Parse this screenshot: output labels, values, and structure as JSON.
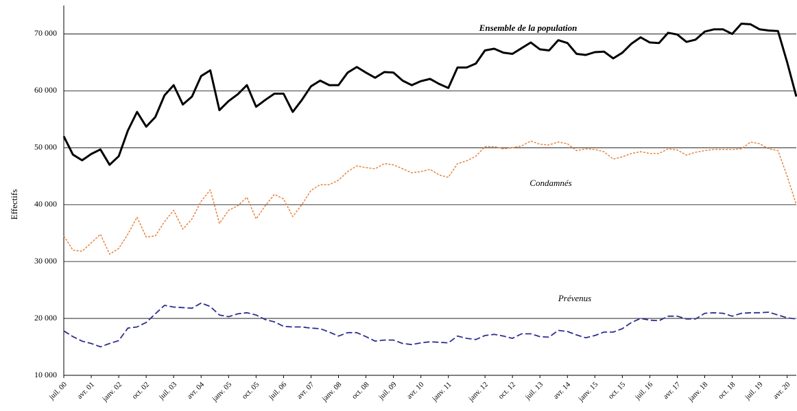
{
  "chart_data": {
    "type": "line",
    "ylabel": "Effectifs",
    "categories": [
      "juil. 00",
      null,
      null,
      "avr. 01",
      null,
      null,
      "janv. 02",
      null,
      null,
      "oct. 02",
      null,
      null,
      "juil. 03",
      null,
      null,
      "avr. 04",
      null,
      null,
      "janv. 05",
      null,
      null,
      "oct. 05",
      null,
      null,
      "juil. 06",
      null,
      null,
      "avr. 07",
      null,
      null,
      "janv. 08",
      null,
      null,
      "oct. 08",
      null,
      null,
      "juil. 09",
      null,
      null,
      "avr. 10",
      null,
      null,
      "janv. 11",
      null,
      null,
      null,
      "janv. 12",
      null,
      null,
      "oct. 12",
      null,
      null,
      "juil. 13",
      null,
      null,
      "avr. 14",
      null,
      null,
      "janv. 15",
      null,
      null,
      "oct. 15",
      null,
      null,
      "juil. 16",
      null,
      null,
      "avr. 17",
      null,
      null,
      "janv. 18",
      null,
      null,
      "oct. 18",
      null,
      null,
      "juil. 19",
      null,
      null,
      "avr. 20",
      null
    ],
    "series": [
      {
        "name": "Ensemble de la population",
        "color": "#000000",
        "dash": "solid",
        "values": [
          52000,
          48800,
          47800,
          48900,
          49700,
          47000,
          48500,
          53000,
          56300,
          53700,
          55400,
          59200,
          61000,
          57600,
          59000,
          62600,
          63600,
          56600,
          58200,
          59400,
          61000,
          57200,
          58400,
          59500,
          59500,
          56300,
          58400,
          60800,
          61800,
          61000,
          61000,
          63200,
          64200,
          63200,
          62300,
          63300,
          63200,
          61800,
          61000,
          61700,
          62100,
          61200,
          60500,
          64100,
          64100,
          64800,
          67100,
          67400,
          66700,
          66500,
          67500,
          68500,
          67300,
          67100,
          68900,
          68400,
          66500,
          66300,
          66800,
          66900,
          65700,
          66700,
          68300,
          69400,
          68500,
          68400,
          70200,
          69900,
          68600,
          69000,
          70400,
          70800,
          70800,
          70000,
          71800,
          71700,
          70800,
          70600,
          70500,
          65000,
          59000
        ]
      },
      {
        "name": "Condamnés",
        "color": "#e8823a",
        "dash": "dotted",
        "values": [
          34500,
          32000,
          31800,
          33300,
          34800,
          31300,
          32300,
          34800,
          37800,
          34300,
          34500,
          37000,
          39000,
          35700,
          37500,
          40600,
          42600,
          36700,
          39000,
          39800,
          41300,
          37500,
          39800,
          41800,
          41000,
          37900,
          40000,
          42500,
          43500,
          43500,
          44300,
          45800,
          46800,
          46500,
          46300,
          47200,
          47000,
          46300,
          45600,
          45800,
          46200,
          45200,
          44800,
          47200,
          47700,
          48500,
          50200,
          50200,
          49800,
          50000,
          50300,
          51200,
          50600,
          50500,
          51000,
          50700,
          49500,
          49800,
          49700,
          49300,
          48000,
          48400,
          49000,
          49300,
          49000,
          49000,
          49800,
          49600,
          48700,
          49200,
          49500,
          49700,
          49700,
          49700,
          49800,
          51000,
          50700,
          49800,
          49500,
          45000,
          40000
        ]
      },
      {
        "name": "Prévenus",
        "color": "#2e2e8f",
        "dash": "dashed",
        "values": [
          17800,
          16800,
          16000,
          15600,
          15000,
          15600,
          16100,
          18300,
          18500,
          19300,
          20800,
          22300,
          22000,
          21900,
          21800,
          22700,
          22100,
          20600,
          20300,
          20800,
          21000,
          20600,
          19800,
          19400,
          18600,
          18500,
          18500,
          18300,
          18200,
          17600,
          16900,
          17500,
          17500,
          16800,
          16000,
          16200,
          16200,
          15600,
          15400,
          15700,
          15900,
          15800,
          15700,
          16900,
          16500,
          16300,
          17000,
          17200,
          16900,
          16500,
          17300,
          17300,
          16800,
          16700,
          17900,
          17700,
          17100,
          16600,
          17000,
          17600,
          17600,
          18200,
          19300,
          20000,
          19700,
          19600,
          20400,
          20400,
          19900,
          19900,
          20900,
          21000,
          20900,
          20400,
          20900,
          21000,
          21000,
          21100,
          20600,
          20100,
          19900
        ]
      }
    ],
    "ylim": [
      10000,
      75000
    ],
    "yticks": [
      {
        "value": 10000,
        "label": "10 000"
      },
      {
        "value": 20000,
        "label": "20 000"
      },
      {
        "value": 30000,
        "label": "30 000"
      },
      {
        "value": 40000,
        "label": "40 000"
      },
      {
        "value": 50000,
        "label": "50 000"
      },
      {
        "value": 60000,
        "label": "60 000"
      },
      {
        "value": 70000,
        "label": "70 000"
      }
    ],
    "grid": true
  }
}
